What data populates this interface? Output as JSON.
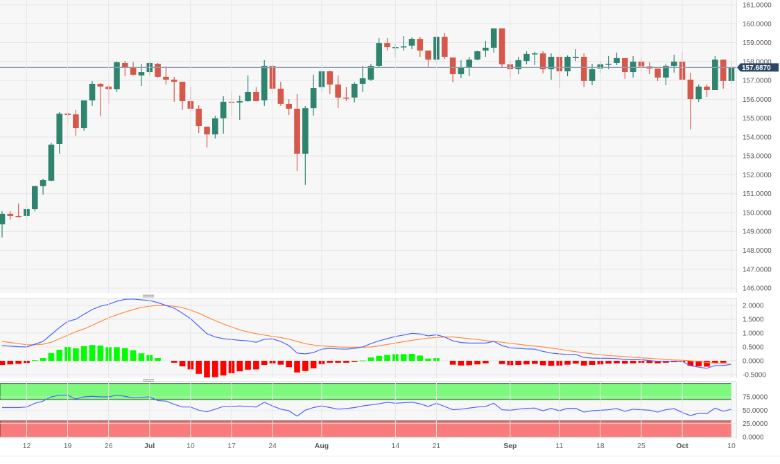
{
  "chart_data": [
    {
      "type": "candlestick",
      "title": "",
      "price_axis": {
        "ylim": [
          146,
          161
        ],
        "ticks": [
          "161.0000",
          "160.0000",
          "159.0000",
          "158.0000",
          "157.0000",
          "156.0000",
          "155.0000",
          "154.0000",
          "153.0000",
          "152.0000",
          "151.0000",
          "150.0000",
          "149.0000",
          "148.0000",
          "147.0000",
          "146.0000"
        ],
        "tick_values": [
          161,
          160,
          159,
          158,
          157,
          156,
          155,
          154,
          153,
          152,
          151,
          150,
          149,
          148,
          147,
          146
        ]
      },
      "current_price": {
        "value": 157.687,
        "label": "157.6870"
      },
      "x_labels": [
        {
          "label": "12",
          "index": 3,
          "bold": false
        },
        {
          "label": "19",
          "index": 8,
          "bold": false
        },
        {
          "label": "26",
          "index": 13,
          "bold": false
        },
        {
          "label": "Jul",
          "index": 18,
          "bold": true
        },
        {
          "label": "10",
          "index": 23,
          "bold": false
        },
        {
          "label": "17",
          "index": 28,
          "bold": false
        },
        {
          "label": "24",
          "index": 33,
          "bold": false
        },
        {
          "label": "Aug",
          "index": 39,
          "bold": true
        },
        {
          "label": "14",
          "index": 48,
          "bold": false
        },
        {
          "label": "21",
          "index": 53,
          "bold": false
        },
        {
          "label": "Sep",
          "index": 62,
          "bold": true
        },
        {
          "label": "11",
          "index": 68,
          "bold": false
        },
        {
          "label": "18",
          "index": 73,
          "bold": false
        },
        {
          "label": "25",
          "index": 78,
          "bold": false
        },
        {
          "label": "Oct",
          "index": 83,
          "bold": true
        },
        {
          "label": "10",
          "index": 89,
          "bold": false
        }
      ],
      "ohlc": [
        [
          149.38,
          150.07,
          148.68,
          149.93
        ],
        [
          149.93,
          150.07,
          149.63,
          149.82
        ],
        [
          149.82,
          150.48,
          149.75,
          149.78
        ],
        [
          149.82,
          150.37,
          149.67,
          150.18
        ],
        [
          150.18,
          151.43,
          150.07,
          151.4
        ],
        [
          151.4,
          151.8,
          150.95,
          151.72
        ],
        [
          151.69,
          153.7,
          151.65,
          153.6
        ],
        [
          153.63,
          155.32,
          153.12,
          155.24
        ],
        [
          155.24,
          155.35,
          154.7,
          155.17
        ],
        [
          155.2,
          155.43,
          154.07,
          154.47
        ],
        [
          154.47,
          155.94,
          154.33,
          155.94
        ],
        [
          155.94,
          156.97,
          155.65,
          156.82
        ],
        [
          156.82,
          156.86,
          155.1,
          156.67
        ],
        [
          156.67,
          156.75,
          155.76,
          156.53
        ],
        [
          156.53,
          158.0,
          156.38,
          157.96
        ],
        [
          157.92,
          158.03,
          157.22,
          157.7
        ],
        [
          157.7,
          157.96,
          157.26,
          157.3
        ],
        [
          157.26,
          157.88,
          156.71,
          157.44
        ],
        [
          157.44,
          158.0,
          157.26,
          157.92
        ],
        [
          157.88,
          157.92,
          157.15,
          157.19
        ],
        [
          157.19,
          157.74,
          156.78,
          157.04
        ],
        [
          157.04,
          157.19,
          155.87,
          156.93
        ],
        [
          156.93,
          156.93,
          155.43,
          155.9
        ],
        [
          155.9,
          156.67,
          155.35,
          155.5
        ],
        [
          155.5,
          155.68,
          154.21,
          154.58
        ],
        [
          154.55,
          154.55,
          153.45,
          154.14
        ],
        [
          154.14,
          155.13,
          153.92,
          154.99
        ],
        [
          154.99,
          156.16,
          154.18,
          155.87
        ],
        [
          155.87,
          156.38,
          155.13,
          155.83
        ],
        [
          155.83,
          156.2,
          154.91,
          155.9
        ],
        [
          155.9,
          157.26,
          155.87,
          156.38
        ],
        [
          156.38,
          156.64,
          155.9,
          155.9
        ],
        [
          155.94,
          158.07,
          155.65,
          157.77
        ],
        [
          157.77,
          157.85,
          156.27,
          156.56
        ],
        [
          156.56,
          156.93,
          155.65,
          155.76
        ],
        [
          155.76,
          156.01,
          155.17,
          155.5
        ],
        [
          155.5,
          156.27,
          152.2,
          153.12
        ],
        [
          153.12,
          155.65,
          151.47,
          155.53
        ],
        [
          155.53,
          157.3,
          155.13,
          156.6
        ],
        [
          156.64,
          157.52,
          156.38,
          157.48
        ],
        [
          157.48,
          157.52,
          156.27,
          156.78
        ],
        [
          156.78,
          157.26,
          155.54,
          156.09
        ],
        [
          156.09,
          156.64,
          155.9,
          156.05
        ],
        [
          156.09,
          156.9,
          155.83,
          156.82
        ],
        [
          156.82,
          157.77,
          156.38,
          157.11
        ],
        [
          157.04,
          157.88,
          156.97,
          157.77
        ],
        [
          157.77,
          159.24,
          157.7,
          158.98
        ],
        [
          158.98,
          159.24,
          158.58,
          158.76
        ],
        [
          158.73,
          158.95,
          158.21,
          158.76
        ],
        [
          158.76,
          159.35,
          158.58,
          158.8
        ],
        [
          158.84,
          159.28,
          158.65,
          159.2
        ],
        [
          159.2,
          159.31,
          158.25,
          158.58
        ],
        [
          158.58,
          158.58,
          157.7,
          158.1
        ],
        [
          158.1,
          159.39,
          157.85,
          159.31
        ],
        [
          159.31,
          159.5,
          158.14,
          158.25
        ],
        [
          158.21,
          158.21,
          156.9,
          157.33
        ],
        [
          157.33,
          158.07,
          157.11,
          157.7
        ],
        [
          157.7,
          158.25,
          157.22,
          158.1
        ],
        [
          158.1,
          158.58,
          158.07,
          158.54
        ],
        [
          158.58,
          159.09,
          158.25,
          158.73
        ],
        [
          158.73,
          159.75,
          158.47,
          159.75
        ],
        [
          159.75,
          159.75,
          157.66,
          157.85
        ],
        [
          157.85,
          158.0,
          157.11,
          157.59
        ],
        [
          157.59,
          158.25,
          157.33,
          158.07
        ],
        [
          158.03,
          158.54,
          157.85,
          158.4
        ],
        [
          158.4,
          158.51,
          157.81,
          158.43
        ],
        [
          158.43,
          158.54,
          157.37,
          157.59
        ],
        [
          157.59,
          158.43,
          157.04,
          158.25
        ],
        [
          158.25,
          158.25,
          156.6,
          157.48
        ],
        [
          157.48,
          158.32,
          157.22,
          158.25
        ],
        [
          158.18,
          158.65,
          158.03,
          158.25
        ],
        [
          158.25,
          158.43,
          156.64,
          156.97
        ],
        [
          156.97,
          157.88,
          156.75,
          157.59
        ],
        [
          157.63,
          158.0,
          157.37,
          157.85
        ],
        [
          157.85,
          158.29,
          157.59,
          157.88
        ],
        [
          157.92,
          158.47,
          157.81,
          158.18
        ],
        [
          158.18,
          158.18,
          157.08,
          157.44
        ],
        [
          157.44,
          158.29,
          157.15,
          157.99
        ],
        [
          157.99,
          158.21,
          157.48,
          157.74
        ],
        [
          157.74,
          157.96,
          157.33,
          157.63
        ],
        [
          157.63,
          157.63,
          156.97,
          157.15
        ],
        [
          157.15,
          157.88,
          156.75,
          157.77
        ],
        [
          157.77,
          158.36,
          157.41,
          157.99
        ],
        [
          157.99,
          158.51,
          157.04,
          157.04
        ],
        [
          157.04,
          157.41,
          154.4,
          156.01
        ],
        [
          156.01,
          156.78,
          155.87,
          156.67
        ],
        [
          156.67,
          156.78,
          156.12,
          156.49
        ],
        [
          156.49,
          158.29,
          156.49,
          158.1
        ],
        [
          158.1,
          158.1,
          156.56,
          156.97
        ],
        [
          156.97,
          157.99,
          156.78,
          157.69
        ]
      ],
      "colors": {
        "up": "#2f8470",
        "down": "#d6584a",
        "current_line": "#8c9db3",
        "current_tag": "#2c4766"
      }
    },
    {
      "type": "line",
      "name": "MACD",
      "ylim": [
        -0.62,
        2.27
      ],
      "ticks": [
        "2.0000",
        "1.5000",
        "1.0000",
        "0.5000",
        "0.0000",
        "-0.5000"
      ],
      "tick_values": [
        2.0,
        1.5,
        1.0,
        0.5,
        0.0,
        -0.5
      ],
      "series": [
        {
          "name": "macd",
          "color": "#4a63ff",
          "values": [
            0.55,
            0.53,
            0.51,
            0.5,
            0.6,
            0.7,
            0.95,
            1.2,
            1.42,
            1.5,
            1.68,
            1.85,
            1.97,
            2.04,
            2.15,
            2.22,
            2.23,
            2.2,
            2.18,
            2.1,
            2.0,
            1.9,
            1.72,
            1.52,
            1.25,
            0.98,
            0.86,
            0.8,
            0.77,
            0.74,
            0.72,
            0.67,
            0.78,
            0.79,
            0.7,
            0.55,
            0.28,
            0.25,
            0.3,
            0.42,
            0.45,
            0.43,
            0.42,
            0.45,
            0.5,
            0.62,
            0.72,
            0.8,
            0.88,
            0.93,
            0.99,
            0.97,
            0.9,
            0.94,
            0.86,
            0.72,
            0.66,
            0.64,
            0.64,
            0.64,
            0.7,
            0.55,
            0.47,
            0.45,
            0.43,
            0.42,
            0.34,
            0.28,
            0.25,
            0.23,
            0.23,
            0.12,
            0.1,
            0.09,
            0.09,
            0.08,
            0.05,
            0.04,
            0.04,
            0.01,
            -0.02,
            -0.02,
            -0.02,
            -0.02,
            -0.18,
            -0.23,
            -0.27,
            -0.17,
            -0.17,
            -0.13
          ]
        },
        {
          "name": "signal",
          "color": "#ff8a3d",
          "values": [
            0.7,
            0.66,
            0.62,
            0.58,
            0.58,
            0.6,
            0.67,
            0.8,
            0.92,
            1.05,
            1.15,
            1.28,
            1.42,
            1.55,
            1.66,
            1.76,
            1.85,
            1.93,
            1.97,
            2.0,
            2.0,
            1.97,
            1.92,
            1.83,
            1.72,
            1.58,
            1.45,
            1.33,
            1.22,
            1.12,
            1.04,
            0.98,
            0.93,
            0.88,
            0.84,
            0.78,
            0.7,
            0.62,
            0.57,
            0.54,
            0.52,
            0.5,
            0.49,
            0.49,
            0.49,
            0.5,
            0.54,
            0.59,
            0.64,
            0.69,
            0.74,
            0.78,
            0.82,
            0.84,
            0.86,
            0.86,
            0.83,
            0.8,
            0.77,
            0.73,
            0.7,
            0.67,
            0.63,
            0.6,
            0.56,
            0.53,
            0.5,
            0.46,
            0.42,
            0.37,
            0.33,
            0.29,
            0.25,
            0.22,
            0.19,
            0.17,
            0.15,
            0.13,
            0.11,
            0.09,
            0.07,
            0.05,
            0.03,
            0.02,
            0.0,
            -0.03,
            -0.06,
            -0.08,
            -0.1,
            -0.13
          ]
        }
      ],
      "histogram": {
        "name": "macd - signal",
        "up_color": "#00ff00",
        "down_color": "#ff0000"
      }
    },
    {
      "type": "line",
      "name": "RSI",
      "ylim": [
        0,
        100
      ],
      "ticks": [
        "75.0000",
        "50.0000",
        "25.0000",
        "0.0000"
      ],
      "tick_values": [
        75,
        50,
        25,
        0
      ],
      "overbought": 70,
      "oversold": 30,
      "colors": {
        "line": "#4a63ff",
        "overbought": "#7dfa7d",
        "oversold": "#fa7b7b"
      },
      "values": [
        55,
        55,
        55,
        56,
        63,
        67,
        75,
        78,
        78,
        71,
        75,
        76,
        75,
        75,
        78,
        76,
        73,
        74,
        75,
        68,
        67,
        61,
        56,
        56,
        50,
        47,
        52,
        57,
        57,
        58,
        57,
        56,
        65,
        58,
        52,
        49,
        39,
        50,
        55,
        58,
        55,
        52,
        53,
        55,
        58,
        60,
        62,
        65,
        63,
        64,
        65,
        62,
        57,
        63,
        57,
        51,
        52,
        54,
        56,
        57,
        63,
        51,
        50,
        52,
        53.5,
        54,
        49,
        53.5,
        49,
        53.5,
        53.5,
        46.5,
        49,
        50,
        51,
        53,
        48,
        52,
        51,
        50,
        46.5,
        51,
        53,
        45.7,
        40,
        44.4,
        43.5,
        54,
        48,
        52
      ]
    }
  ]
}
